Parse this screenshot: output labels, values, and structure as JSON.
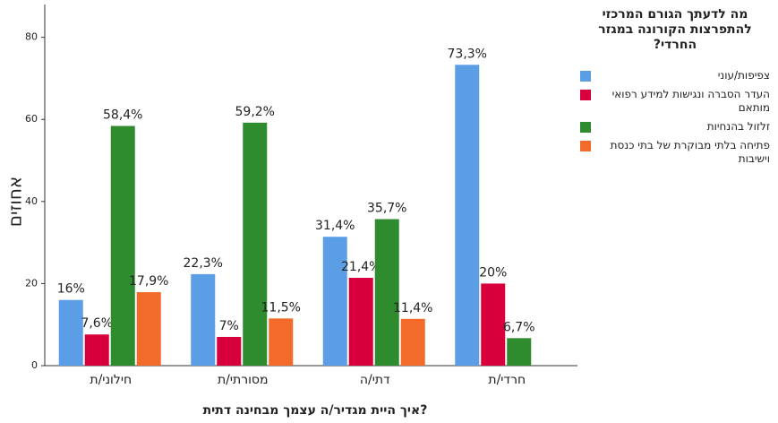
{
  "chart_data": {
    "type": "bar",
    "title": "מה לדעתך הגורם המרכזי להתפרצות הקורונה במגזר החרדי?",
    "x_label": "איך היית מגדיר/ה עצמך מבחינה דתית?",
    "y_label": "אחוזים",
    "categories": [
      "חילוני/ת",
      "מסורתי/ת",
      "דתי/ה",
      "חרדי/ת"
    ],
    "series": [
      {
        "name": "צפיפות/עוני",
        "color": "#5b9ee6",
        "values": [
          16,
          22.3,
          31.4,
          73.3
        ],
        "value_labels": [
          "16%",
          "22,3%",
          "31,4%",
          "73,3%"
        ]
      },
      {
        "name": "העדר הסברה ונגישות למידע רפואי מותאם",
        "color": "#d8003c",
        "values": [
          7.6,
          7,
          21.4,
          20
        ],
        "value_labels": [
          "7,6%",
          "7%",
          "21,4%",
          "20%"
        ]
      },
      {
        "name": "זלזול בהנחיות",
        "color": "#2e8b2e",
        "values": [
          58.4,
          59.2,
          35.7,
          6.7
        ],
        "value_labels": [
          "58,4%",
          "59,2%",
          "35,7%",
          "6,7%"
        ]
      },
      {
        "name": "פתיחה בלתי מבוקרת של בתי כנסת וישיבות",
        "color": "#f26b2b",
        "values": [
          17.9,
          11.5,
          11.4,
          null
        ],
        "value_labels": [
          "17,9%",
          "11,5%",
          "11,4%",
          null
        ]
      }
    ],
    "ylim": [
      0,
      88
    ],
    "yticks": [
      0,
      20,
      40,
      60,
      80
    ],
    "grid": false
  }
}
